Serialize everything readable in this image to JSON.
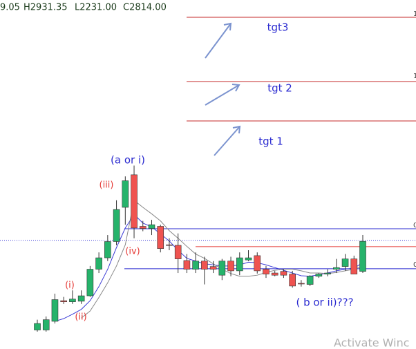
{
  "chart_data": {
    "type": "candlestick",
    "header": [
      "9.05",
      "H2931.35",
      "L2231.00",
      "C2814.00"
    ],
    "ylim": [
      830,
      7260
    ],
    "up_color": "#26b36b",
    "down_color": "#ef5350",
    "open": [
      1180,
      1180,
      1340,
      1720,
      1700,
      1710,
      1810,
      2300,
      2510,
      2810,
      3440,
      4040,
      3090,
      3050,
      3090,
      2750,
      2740,
      2460,
      2300,
      2450,
      2350,
      2190,
      2450,
      2270,
      2470,
      2550,
      2300,
      2230,
      2260,
      2210,
      2040,
      2020,
      2170,
      2210,
      2300,
      2350,
      2490,
      2260
    ],
    "high": [
      1370,
      1430,
      1850,
      1790,
      1910,
      1910,
      2360,
      2610,
      2930,
      3570,
      4010,
      4210,
      3190,
      3210,
      3120,
      2870,
      2960,
      2580,
      2610,
      2530,
      2450,
      2490,
      2530,
      2610,
      2650,
      2610,
      2360,
      2270,
      2300,
      2270,
      2100,
      2190,
      2230,
      2300,
      2490,
      2580,
      2550,
      2931.35
    ],
    "low": [
      1150,
      1150,
      1300,
      1660,
      1660,
      1660,
      1790,
      2230,
      2450,
      2740,
      3120,
      2870,
      3000,
      2930,
      2610,
      2650,
      2230,
      2230,
      2230,
      2020,
      2230,
      2100,
      2170,
      2190,
      2450,
      2220,
      2140,
      2170,
      2140,
      1960,
      1980,
      1990,
      2140,
      2170,
      2230,
      2270,
      2210,
      2231.0
    ],
    "close": [
      1300,
      1370,
      1740,
      1700,
      1750,
      1810,
      2300,
      2510,
      2810,
      3400,
      3930,
      3060,
      3050,
      3120,
      2680,
      2740,
      2490,
      2300,
      2450,
      2300,
      2300,
      2450,
      2270,
      2510,
      2510,
      2270,
      2210,
      2190,
      2190,
      1990,
      2030,
      2170,
      2210,
      2230,
      2330,
      2490,
      2210,
      2814.0
    ],
    "ma": [
      {
        "color": "#3b3bd6",
        "values": [
          null,
          null,
          1340,
          1390,
          1470,
          1560,
          1720,
          1980,
          2300,
          2700,
          3060,
          3310,
          3150,
          3080,
          2950,
          2820,
          2650,
          2500,
          2450,
          2400,
          2380,
          2360,
          2360,
          2380,
          2430,
          2420,
          2380,
          2330,
          2280,
          2230,
          2180,
          2170,
          2200,
          2230,
          2270,
          2300,
          2320,
          2420
        ]
      },
      {
        "color": "#888888",
        "values": [
          null,
          null,
          null,
          null,
          null,
          1400,
          1530,
          1780,
          2050,
          2360,
          2750,
          3570,
          3440,
          3320,
          3190,
          3010,
          2870,
          2720,
          2580,
          2500,
          2400,
          2300,
          2220,
          2170,
          2170,
          2190,
          2240,
          2280,
          2300,
          2300,
          2270,
          2230,
          2230,
          2220,
          2240,
          2270,
          2300,
          2360
        ]
      }
    ],
    "levels": [
      {
        "value": 6942,
        "color": "#c62828",
        "from": 270
      },
      {
        "value": 5758,
        "color": "#c62828",
        "from": 270
      },
      {
        "value": 5032,
        "color": "#c62828",
        "from": 270
      },
      {
        "value": 3046,
        "color": "#2a2ad0",
        "from": 180
      },
      {
        "value": 2716,
        "color": "#e53935",
        "from": 283
      },
      {
        "value": 2308,
        "color": "#2a2ad0",
        "from": 180
      },
      {
        "value": 2830,
        "color": "#3b3bd6",
        "from": 0,
        "dotted": true
      }
    ],
    "right_labels": [
      "1",
      "1",
      "0",
      "0"
    ],
    "annotations": [
      {
        "text": "(a or i)",
        "color": "#2a2ad0"
      },
      {
        "text": "(iii)",
        "color": "#e53935"
      },
      {
        "text": "(iv)",
        "color": "#e53935"
      },
      {
        "text": "(i)",
        "color": "#e53935"
      },
      {
        "text": "(ii)",
        "color": "#e53935"
      },
      {
        "text": "( b or ii)???",
        "color": "#2a2ad0"
      },
      {
        "text": "tgt3",
        "color": "#2a2ad0"
      },
      {
        "text": "tgt 2",
        "color": "#2a2ad0"
      },
      {
        "text": "tgt 1",
        "color": "#2a2ad0"
      }
    ],
    "watermark": "Activate Winc"
  }
}
